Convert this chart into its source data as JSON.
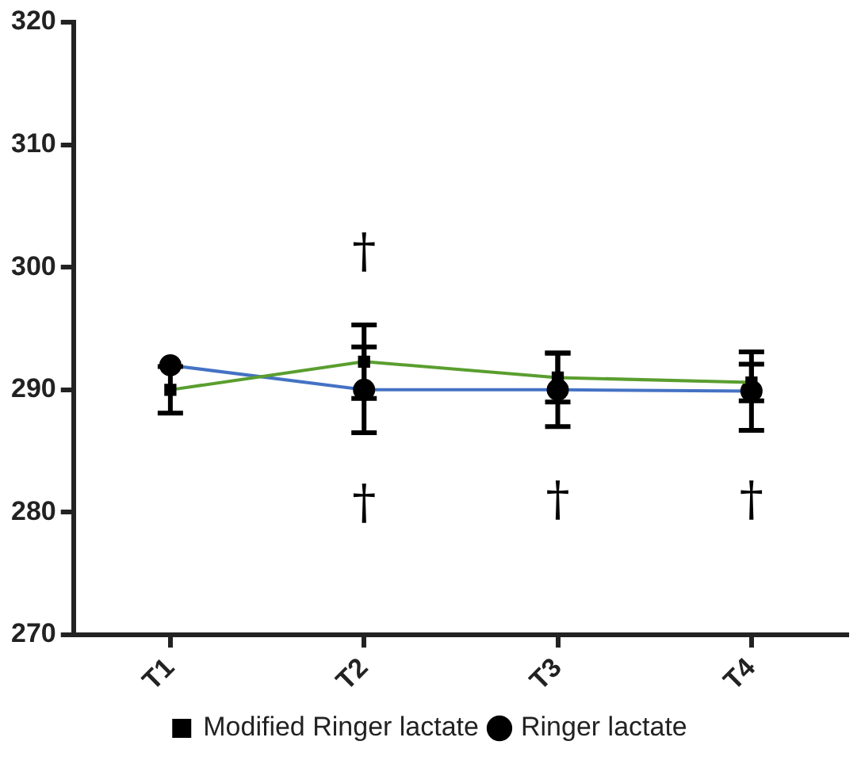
{
  "chart_data": {
    "type": "line",
    "categories": [
      "T1",
      "T2",
      "T3",
      "T4"
    ],
    "series": [
      {
        "name": "Modified Ringer lactate",
        "color": "#5a9e2f",
        "marker": "square",
        "values": [
          290,
          292.3,
          291,
          290.6
        ],
        "errors": [
          1.9,
          3,
          2,
          1.5
        ]
      },
      {
        "name": "Ringer lactate",
        "color": "#4472c4",
        "marker": "circle",
        "values": [
          292,
          290,
          290,
          289.9
        ],
        "errors": [
          null,
          3.5,
          3,
          3.2
        ]
      }
    ],
    "ylim": [
      270,
      320
    ],
    "yticks": [
      270,
      280,
      290,
      300,
      310,
      320
    ],
    "grid": false,
    "legend": "bottom",
    "annotations": [
      "†",
      "†",
      "†",
      "†"
    ]
  }
}
